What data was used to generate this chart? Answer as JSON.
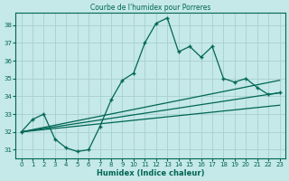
{
  "title": "Courbe de l'humidex pour Porreres",
  "xlabel": "Humidex (Indice chaleur)",
  "bg_color": "#c5e8e8",
  "grid_color": "#a8d0d0",
  "line_color": "#006655",
  "xlim": [
    -0.5,
    23.5
  ],
  "ylim": [
    30.5,
    38.7
  ],
  "yticks": [
    31,
    32,
    33,
    34,
    35,
    36,
    37,
    38
  ],
  "xticks": [
    0,
    1,
    2,
    3,
    4,
    5,
    6,
    7,
    8,
    9,
    10,
    11,
    12,
    13,
    14,
    15,
    16,
    17,
    18,
    19,
    20,
    21,
    22,
    23
  ],
  "line1_x": [
    0,
    1,
    2,
    3,
    4,
    5,
    6,
    7,
    8,
    9,
    10,
    11,
    12,
    13,
    14,
    15,
    16,
    17,
    18,
    19,
    20,
    21,
    22,
    23
  ],
  "line1_y": [
    32.0,
    32.7,
    33.0,
    31.6,
    31.1,
    30.9,
    31.0,
    32.3,
    33.8,
    34.9,
    35.3,
    37.0,
    38.1,
    38.4,
    36.5,
    36.8,
    36.2,
    36.8,
    35.0,
    34.8,
    35.0,
    34.5,
    34.1,
    34.2
  ],
  "line2_x": [
    0,
    23
  ],
  "line2_y": [
    32.0,
    34.9
  ],
  "line3_x": [
    0,
    23
  ],
  "line3_y": [
    32.0,
    34.2
  ],
  "line4_x": [
    0,
    23
  ],
  "line4_y": [
    32.0,
    33.5
  ]
}
